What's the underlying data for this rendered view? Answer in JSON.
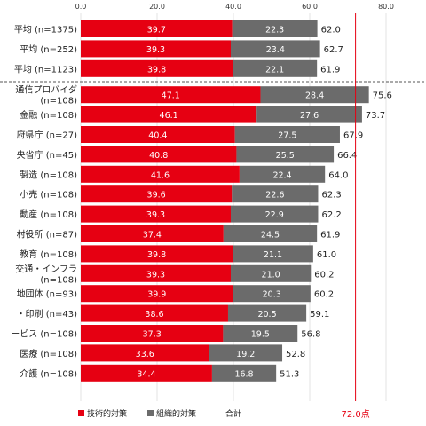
{
  "chart_data": {
    "type": "bar",
    "stacked": true,
    "orientation": "horizontal",
    "title": "",
    "xlabel": "",
    "ylabel": "",
    "xlim": [
      0,
      90
    ],
    "x_ticks": [
      "0.0",
      "20.0",
      "40.0",
      "60.0",
      "80.0"
    ],
    "x_tick_values": [
      0,
      20,
      40,
      60,
      80
    ],
    "grid": true,
    "legend_position": "bottom-left",
    "categories": [
      "平均 (n=1375)",
      "平均 (n=252)",
      "平均 (n=1123)",
      "通信プロバイダ (n=108)",
      "金融 (n=108)",
      "府県庁 (n=27)",
      "央省庁 (n=45)",
      "製造 (n=108)",
      "小売 (n=108)",
      "動産 (n=108)",
      "村役所 (n=87)",
      "教育 (n=108)",
      "交通・インフラ (n=108)",
      "地団体 (n=93)",
      "・印刷 (n=43)",
      "ービス (n=108)",
      "医療 (n=108)",
      "介護 (n=108)"
    ],
    "group_separator_after_index": 2,
    "series": [
      {
        "name": "技術的対策",
        "color": "#e60012",
        "values": [
          39.7,
          39.3,
          39.8,
          47.1,
          46.1,
          40.4,
          40.8,
          41.6,
          39.6,
          39.3,
          37.4,
          39.8,
          39.3,
          39.9,
          38.6,
          37.3,
          33.6,
          34.4
        ]
      },
      {
        "name": "組織的対策",
        "color": "#6b6b6b",
        "values": [
          22.3,
          23.4,
          22.1,
          28.4,
          27.6,
          27.5,
          25.5,
          22.4,
          22.6,
          22.9,
          24.5,
          21.1,
          21.0,
          20.3,
          20.5,
          19.5,
          19.2,
          16.8
        ]
      }
    ],
    "totals_label": "合計",
    "totals": [
      62.0,
      62.7,
      61.9,
      75.6,
      73.7,
      67.9,
      66.4,
      64.0,
      62.3,
      62.2,
      61.9,
      61.0,
      60.2,
      60.2,
      59.1,
      56.8,
      52.8,
      51.3
    ],
    "reference_line": {
      "value": 72.0,
      "label": "72.0点",
      "color": "#e60012"
    }
  }
}
